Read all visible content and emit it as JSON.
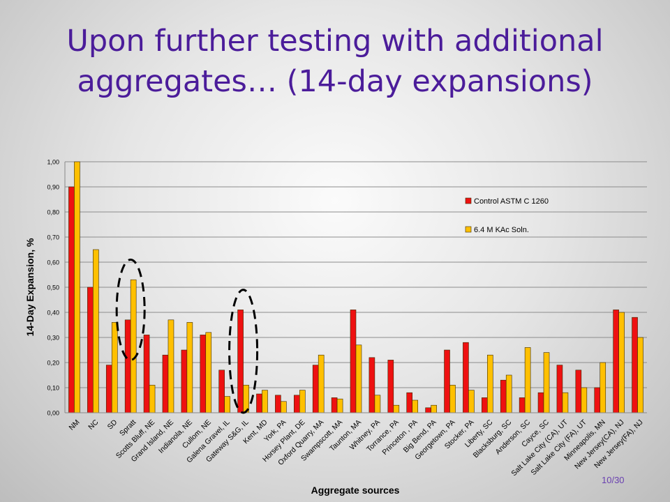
{
  "slide": {
    "title": "Upon further testing with additional aggregates… (14-day expansions)",
    "page_number": "10/30"
  },
  "chart_data": {
    "type": "bar",
    "categories": [
      "NM",
      "NC",
      "SD",
      "Spratt",
      "Scotts Bluff, NE",
      "Grand Island, NE",
      "Indianola, NE",
      "Cullom, NE",
      "Galena Gravel, IL",
      "Gateway S&G, IL",
      "Kent, MD",
      "York, PA",
      "Horsey Plant, DE",
      "Oxford Quarry, MA",
      "Swampscott, MA",
      "Taunton, MA",
      "Whitney, PA",
      "Torrance, PA",
      "Princeton , PA",
      "Big Bend, PA",
      "Georgetown, PA",
      "Stocker, PA",
      "Liberty, SC",
      "Blacksburg, SC",
      "Anderson, SC",
      "Cayce, SC",
      "Salt Lake City (CA), UT",
      "Salt Lake City (FA), UT",
      "Minneapolis, MN",
      "New Jersey(CA), NJ",
      "New Jersey(FA), NJ"
    ],
    "series": [
      {
        "name": "Control ASTM C 1260",
        "color": "#ee1111",
        "values": [
          0.9,
          0.5,
          0.19,
          0.37,
          0.31,
          0.23,
          0.25,
          0.31,
          0.17,
          0.41,
          0.075,
          0.07,
          0.07,
          0.19,
          0.06,
          0.41,
          0.22,
          0.21,
          0.08,
          0.02,
          0.25,
          0.28,
          0.06,
          0.13,
          0.06,
          0.08,
          0.19,
          0.17,
          0.1,
          0.41,
          0.38
        ]
      },
      {
        "name": "6.4 M KAc Soln.",
        "color": "#ffc000",
        "values": [
          1.0,
          0.65,
          0.36,
          0.53,
          0.11,
          0.37,
          0.36,
          0.32,
          0.065,
          0.11,
          0.09,
          0.045,
          0.09,
          0.23,
          0.055,
          0.27,
          0.07,
          0.03,
          0.05,
          0.03,
          0.11,
          0.09,
          0.23,
          0.15,
          0.26,
          0.24,
          0.08,
          0.1,
          0.2,
          0.4,
          0.3
        ]
      }
    ],
    "ylim": [
      0,
      1
    ],
    "yticks": [
      "0,00",
      "0,10",
      "0,20",
      "0,30",
      "0,40",
      "0,50",
      "0,60",
      "0,70",
      "0,80",
      "0,90",
      "1,00"
    ],
    "ylabel": "14-Day Expansion, %",
    "xlabel": "Aggregate sources",
    "legend_position": "top-right",
    "grid": true,
    "annotations": [
      {
        "type": "dashed-ellipse",
        "around_category": "Spratt"
      },
      {
        "type": "dashed-ellipse",
        "around_category": "Gateway S&G, IL"
      }
    ]
  }
}
